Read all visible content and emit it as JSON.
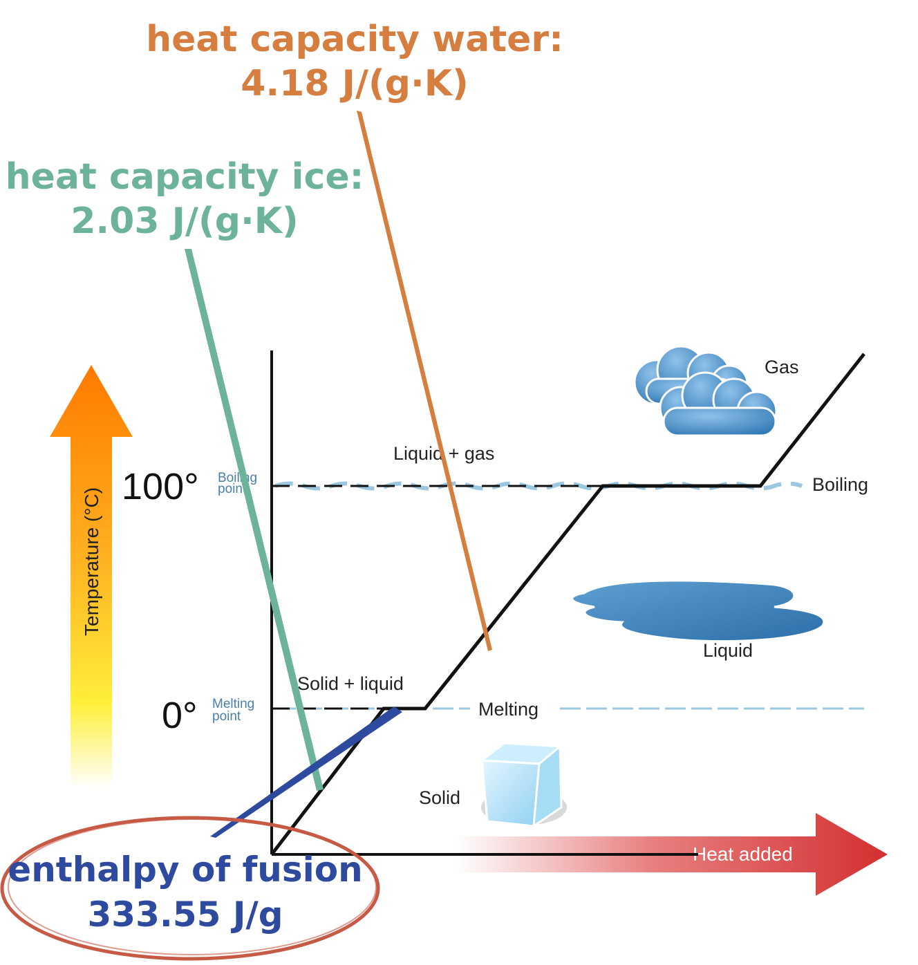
{
  "annotations": {
    "water": {
      "line1": "heat capacity water:",
      "line2": "4.18 J/(g·K)",
      "color": "#d67e3f"
    },
    "ice": {
      "line1": "heat capacity ice:",
      "line2": "2.03 J/(g·K)",
      "color": "#6db39a"
    },
    "fusion": {
      "line1": "enthalpy of fusion",
      "line2": "333.55 J/g",
      "color": "#2e4a9e",
      "circle_color": "#c65a45"
    }
  },
  "diagram": {
    "y_axis_label": "Temperature (°C)",
    "x_axis_label": "Heat added",
    "boiling_temp": "100°",
    "boiling_point_line1": "Boiling",
    "boiling_point_line2": "point",
    "melting_temp": "0°",
    "melting_point_line1": "Melting",
    "melting_point_line2": "point",
    "label_liquid_gas": "Liquid + gas",
    "label_solid_liquid": "Solid + liquid",
    "label_gas": "Gas",
    "label_boiling": "Boiling",
    "label_liquid": "Liquid",
    "label_melting": "Melting",
    "label_solid": "Solid",
    "temp_arrow_colors": [
      "#ff7a00",
      "#ffb020",
      "#ffef3a",
      "#ffffff"
    ],
    "heat_arrow_color": "#d32f2f",
    "water_line_color": "#9cc7e0",
    "icons": [
      "cloud-icon",
      "puddle-icon",
      "ice-cube-icon"
    ]
  }
}
